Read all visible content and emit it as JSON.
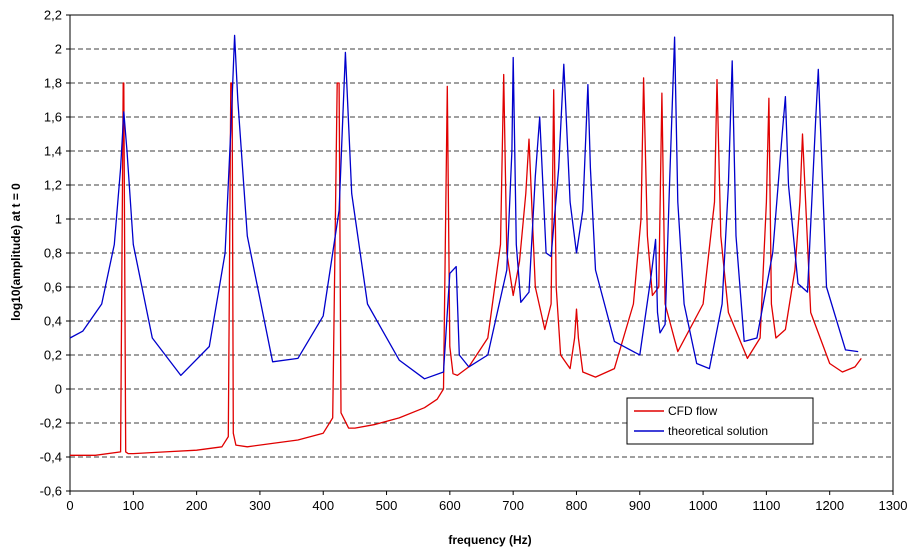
{
  "chart_data": {
    "type": "line",
    "title": "",
    "xlabel": "frequency (Hz)",
    "ylabel": "log10(amplitude) at t = 0",
    "xlim": [
      0,
      1300
    ],
    "ylim": [
      -0.6,
      2.2
    ],
    "grid": "horizontal-dashed",
    "legend_position": "bottom-right",
    "x_ticks": [
      {
        "value": 0,
        "label": "0"
      },
      {
        "value": 100,
        "label": "100"
      },
      {
        "value": 200,
        "label": "200"
      },
      {
        "value": 300,
        "label": "300"
      },
      {
        "value": 400,
        "label": "400"
      },
      {
        "value": 500,
        "label": "500"
      },
      {
        "value": 600,
        "label": "600"
      },
      {
        "value": 700,
        "label": "700"
      },
      {
        "value": 800,
        "label": "800"
      },
      {
        "value": 900,
        "label": "900"
      },
      {
        "value": 1000,
        "label": "1000"
      },
      {
        "value": 1100,
        "label": "1100"
      },
      {
        "value": 1200,
        "label": "1200"
      },
      {
        "value": 1300,
        "label": "1300"
      }
    ],
    "y_ticks": [
      {
        "value": 2.2,
        "label": "2,2"
      },
      {
        "value": 2.0,
        "label": "2"
      },
      {
        "value": 1.8,
        "label": "1,8"
      },
      {
        "value": 1.6,
        "label": "1,6"
      },
      {
        "value": 1.4,
        "label": "1,4"
      },
      {
        "value": 1.2,
        "label": "1,2"
      },
      {
        "value": 1.0,
        "label": "1"
      },
      {
        "value": 0.8,
        "label": "0,8"
      },
      {
        "value": 0.6,
        "label": "0,6"
      },
      {
        "value": 0.4,
        "label": "0,4"
      },
      {
        "value": 0.2,
        "label": "0,2"
      },
      {
        "value": 0.0,
        "label": "0"
      },
      {
        "value": -0.2,
        "label": "-0,2"
      },
      {
        "value": -0.4,
        "label": "-0,4"
      },
      {
        "value": -0.6,
        "label": "-0,6"
      }
    ],
    "series": [
      {
        "name": "CFD flow",
        "color": "#e00000",
        "x": [
          0,
          40,
          80,
          84,
          85,
          88,
          92,
          100,
          150,
          200,
          240,
          250,
          254,
          256,
          258,
          262,
          280,
          320,
          360,
          400,
          415,
          422,
          425,
          428,
          440,
          450,
          480,
          520,
          560,
          580,
          590,
          596,
          600,
          605,
          612,
          630,
          660,
          680,
          685,
          690,
          700,
          710,
          720,
          725,
          735,
          750,
          760,
          764,
          768,
          775,
          790,
          797,
          800,
          803,
          810,
          830,
          860,
          890,
          902,
          906,
          912,
          920,
          930,
          935,
          940,
          960,
          1000,
          1018,
          1022,
          1028,
          1040,
          1070,
          1090,
          1100,
          1104,
          1108,
          1115,
          1130,
          1145,
          1153,
          1157,
          1170,
          1200,
          1220,
          1240,
          1250
        ],
        "y": [
          -0.39,
          -0.39,
          -0.37,
          1.8,
          1.8,
          -0.37,
          -0.38,
          -0.38,
          -0.37,
          -0.36,
          -0.34,
          -0.28,
          1.8,
          1.8,
          -0.26,
          -0.33,
          -0.34,
          -0.32,
          -0.3,
          -0.26,
          -0.17,
          1.8,
          1.8,
          -0.14,
          -0.23,
          -0.23,
          -0.21,
          -0.17,
          -0.11,
          -0.06,
          0.0,
          1.78,
          0.25,
          0.09,
          0.08,
          0.13,
          0.3,
          0.85,
          1.85,
          0.8,
          0.55,
          0.75,
          1.15,
          1.47,
          0.6,
          0.35,
          0.5,
          1.76,
          0.6,
          0.2,
          0.12,
          0.3,
          0.47,
          0.3,
          0.1,
          0.07,
          0.12,
          0.5,
          1.0,
          1.83,
          0.9,
          0.55,
          0.6,
          1.74,
          0.5,
          0.22,
          0.5,
          1.1,
          1.82,
          0.9,
          0.45,
          0.18,
          0.3,
          1.1,
          1.71,
          0.5,
          0.3,
          0.35,
          0.7,
          1.1,
          1.5,
          0.45,
          0.15,
          0.1,
          0.13,
          0.18
        ]
      },
      {
        "name": "theoretical solution",
        "color": "#0000cc",
        "x": [
          0,
          20,
          50,
          70,
          80,
          85,
          90,
          100,
          130,
          175,
          220,
          245,
          255,
          260,
          265,
          280,
          320,
          360,
          400,
          425,
          435,
          445,
          470,
          520,
          560,
          590,
          600,
          610,
          615,
          630,
          660,
          690,
          698,
          700,
          705,
          712,
          725,
          735,
          742,
          752,
          760,
          772,
          780,
          790,
          800,
          810,
          818,
          822,
          830,
          860,
          900,
          918,
          925,
          928,
          932,
          940,
          947,
          955,
          960,
          970,
          990,
          1010,
          1030,
          1040,
          1046,
          1052,
          1065,
          1085,
          1110,
          1125,
          1130,
          1135,
          1150,
          1165,
          1178,
          1182,
          1195,
          1225,
          1245
        ],
        "y": [
          0.3,
          0.34,
          0.5,
          0.85,
          1.3,
          1.63,
          1.4,
          0.85,
          0.3,
          0.08,
          0.25,
          0.8,
          1.6,
          2.08,
          1.7,
          0.9,
          0.16,
          0.18,
          0.43,
          1.05,
          1.98,
          1.15,
          0.5,
          0.17,
          0.06,
          0.1,
          0.68,
          0.72,
          0.2,
          0.13,
          0.2,
          0.7,
          1.4,
          1.95,
          0.85,
          0.51,
          0.57,
          1.25,
          1.6,
          0.8,
          0.78,
          1.3,
          1.91,
          1.1,
          0.8,
          1.05,
          1.79,
          1.3,
          0.7,
          0.28,
          0.2,
          0.67,
          0.88,
          0.45,
          0.33,
          0.38,
          1.2,
          2.07,
          1.1,
          0.5,
          0.15,
          0.12,
          0.5,
          1.2,
          1.93,
          0.9,
          0.28,
          0.3,
          0.8,
          1.5,
          1.72,
          1.2,
          0.62,
          0.57,
          1.6,
          1.88,
          0.6,
          0.23,
          0.22
        ]
      }
    ]
  }
}
